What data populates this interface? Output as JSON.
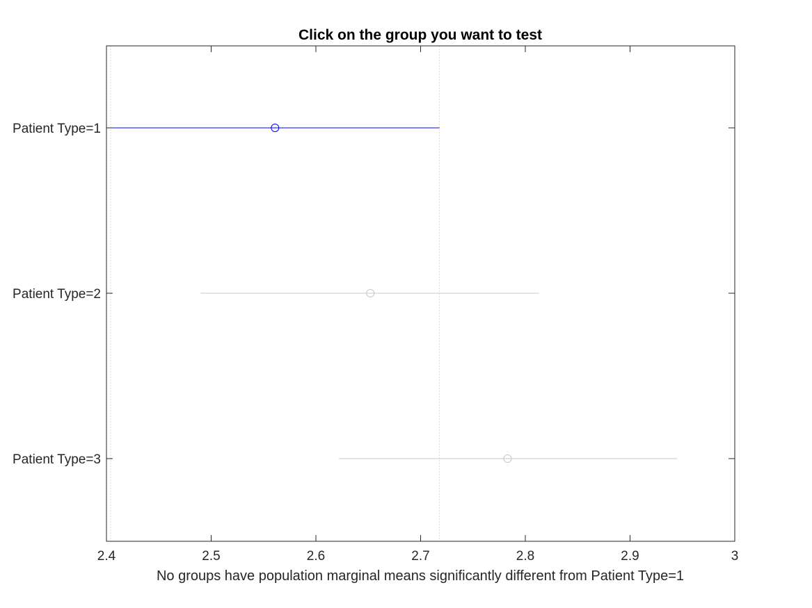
{
  "chart_data": {
    "type": "scatter",
    "title": "Click on the group you want to test",
    "xlabel": "No groups have population marginal means significantly different from Patient Type=1",
    "ylabel": "",
    "xlim": [
      2.4,
      3.0
    ],
    "x_ticks": [
      "2.4",
      "2.5",
      "2.6",
      "2.7",
      "2.8",
      "2.9",
      "3"
    ],
    "categories": [
      "Patient Type=1",
      "Patient Type=2",
      "Patient Type=3"
    ],
    "series": [
      {
        "points": [
          {
            "category": "Patient Type=1",
            "mean": 2.561,
            "lower": 2.404,
            "upper": 2.718,
            "selected": true
          },
          {
            "category": "Patient Type=2",
            "mean": 2.652,
            "lower": 2.49,
            "upper": 2.813,
            "selected": false
          },
          {
            "category": "Patient Type=3",
            "mean": 2.783,
            "lower": 2.622,
            "upper": 2.945,
            "selected": false
          }
        ]
      }
    ],
    "reference_lines": [
      2.404,
      2.718
    ],
    "grid": false,
    "legend": "none",
    "colors": {
      "selected": "#0000ff",
      "unselected": "#c8c8c8",
      "reference": "#d9d9d9",
      "axis": "#262626"
    }
  }
}
